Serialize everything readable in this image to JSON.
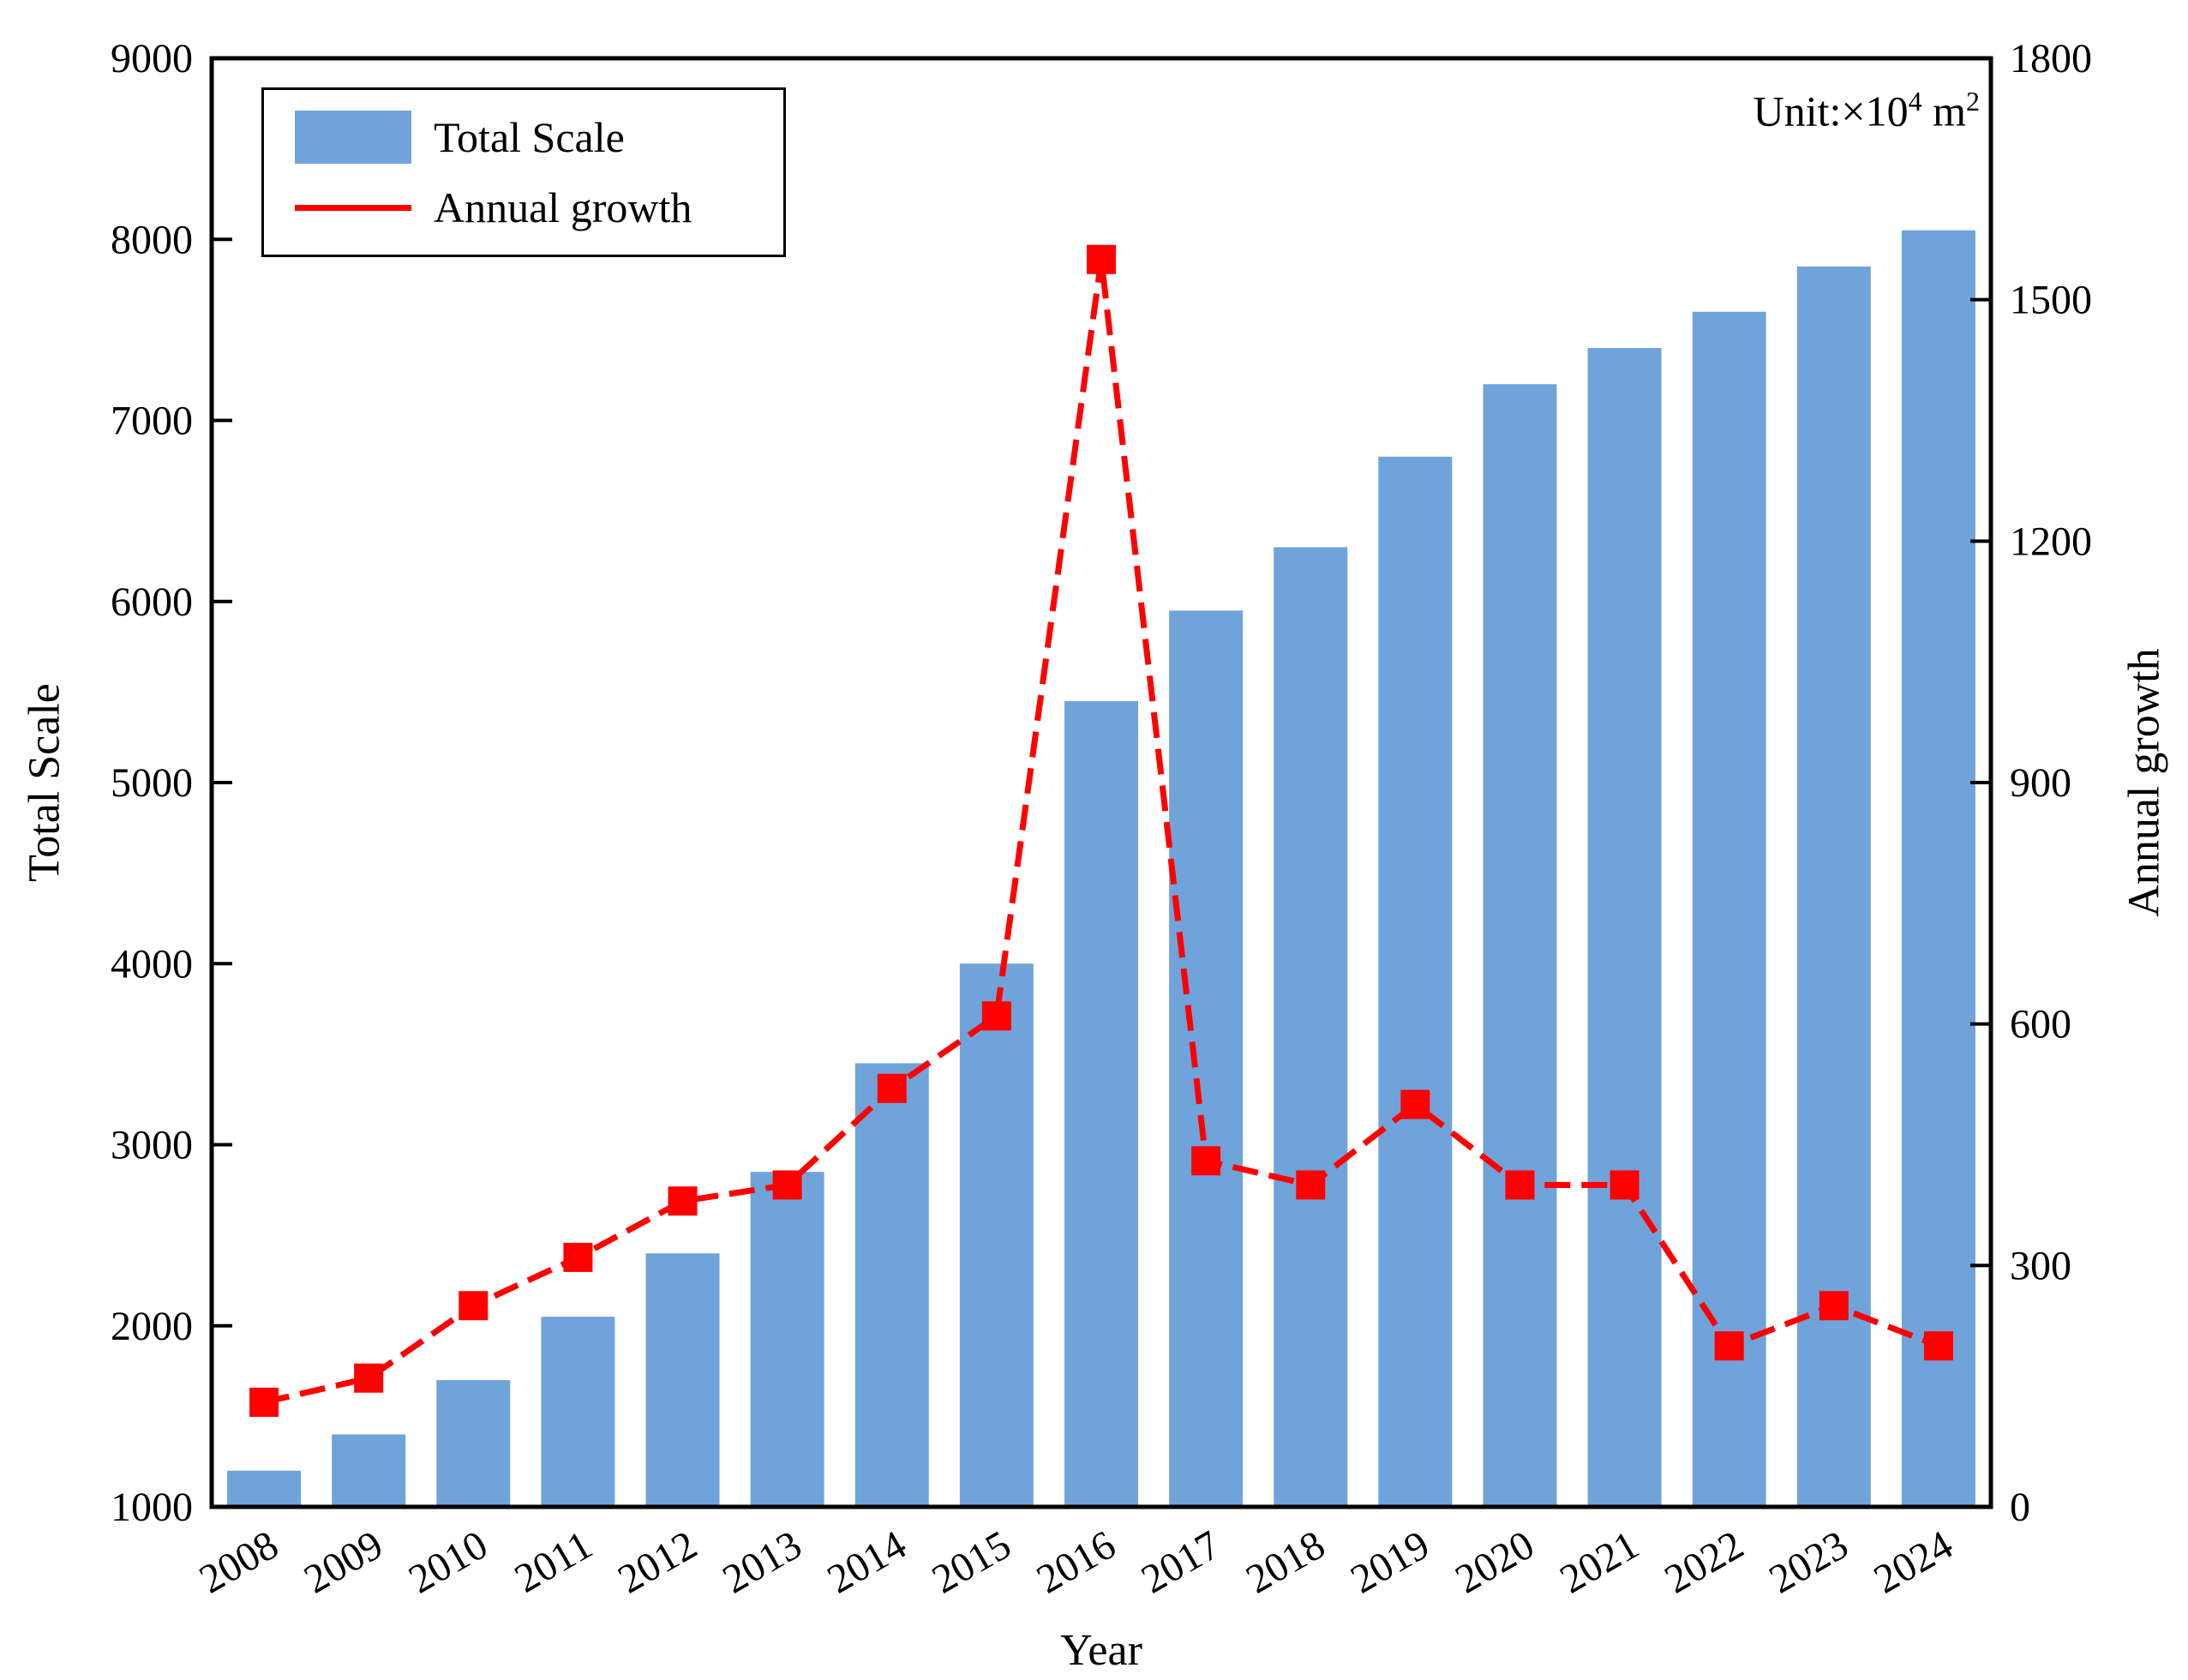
{
  "unit": {
    "prefix": "Unit:×10",
    "exp": "4",
    "mid": " m",
    "exp2": "2"
  },
  "legend": {
    "items": [
      {
        "label": "Total Scale",
        "swatch": "bar-swatch"
      },
      {
        "label": "Annual growth",
        "swatch": "line-swatch"
      }
    ]
  },
  "axes": {
    "x_title": "Year",
    "y_left_title": "Total Scale",
    "y_right_title": "Annual growth"
  },
  "colors": {
    "bar": "#70A3DA",
    "line": "#FF0000",
    "axis": "#000000",
    "background": "#FFFFFF"
  },
  "chart_data": {
    "type": "bar",
    "subtype": "bar+line combo",
    "categories": [
      "2008",
      "2009",
      "2010",
      "2011",
      "2012",
      "2013",
      "2014",
      "2015",
      "2016",
      "2017",
      "2018",
      "2019",
      "2020",
      "2021",
      "2022",
      "2023",
      "2024"
    ],
    "series": [
      {
        "name": "Total Scale",
        "type": "bar",
        "axis": "left",
        "color": "#70A3DA",
        "values": [
          1200,
          1400,
          1700,
          2050,
          2400,
          2850,
          3450,
          4000,
          5450,
          5950,
          6300,
          6800,
          7200,
          7400,
          7600,
          7850,
          8050
        ]
      },
      {
        "name": "Annual growth",
        "type": "line",
        "axis": "right",
        "color": "#FF0000",
        "line_style": "dashed",
        "marker": "square",
        "values": [
          130,
          160,
          250,
          310,
          380,
          400,
          520,
          610,
          1550,
          430,
          400,
          500,
          400,
          400,
          200,
          250,
          200
        ]
      }
    ],
    "title": "",
    "xlabel": "Year",
    "ylabel_left": "Total Scale",
    "ylabel_right": "Annual growth",
    "unit_annotation": "Unit:×10⁴ m²",
    "left_axis": {
      "min": 1000,
      "max": 9000,
      "tick_step": 1000,
      "ticks": [
        1000,
        2000,
        3000,
        4000,
        5000,
        6000,
        7000,
        8000,
        9000
      ]
    },
    "right_axis": {
      "min": 0,
      "max": 1800,
      "tick_step": 300,
      "ticks": [
        0,
        300,
        600,
        900,
        1200,
        1500,
        1800
      ]
    },
    "grid": false,
    "legend_position": "upper-left",
    "x_tick_rotation": 30
  }
}
